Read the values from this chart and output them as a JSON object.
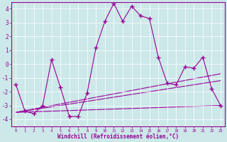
{
  "xlabel": "Windchill (Refroidissement éolien,°C)",
  "x": [
    0,
    1,
    2,
    3,
    4,
    5,
    6,
    7,
    8,
    9,
    10,
    11,
    12,
    13,
    14,
    15,
    16,
    17,
    18,
    19,
    20,
    21,
    22,
    23
  ],
  "y": [
    -1.5,
    -3.4,
    -3.6,
    -3.0,
    0.3,
    -1.7,
    -3.8,
    -3.8,
    -2.1,
    1.2,
    3.1,
    4.4,
    3.1,
    4.2,
    3.5,
    3.3,
    0.5,
    -1.4,
    -1.5,
    -0.2,
    -0.3,
    0.5,
    -1.8,
    -3.0
  ],
  "ylim": [
    -4.5,
    4.5
  ],
  "xlim": [
    -0.5,
    23.5
  ],
  "yticks": [
    -4,
    -3,
    -2,
    -1,
    0,
    1,
    2,
    3,
    4
  ],
  "xticks": [
    0,
    1,
    2,
    3,
    4,
    5,
    6,
    7,
    8,
    9,
    10,
    11,
    12,
    13,
    14,
    15,
    16,
    17,
    18,
    19,
    20,
    21,
    22,
    23
  ],
  "line_color": "#990099",
  "bg_color": "#cce8e8",
  "grid_color": "#ffffff",
  "trend1_x": [
    0,
    23
  ],
  "trend1_y": [
    -3.5,
    -3.0
  ],
  "trend2_x": [
    0,
    23
  ],
  "trend2_y": [
    -3.5,
    -1.2
  ],
  "trend3_x": [
    0,
    23
  ],
  "trend3_y": [
    -3.5,
    -0.7
  ]
}
